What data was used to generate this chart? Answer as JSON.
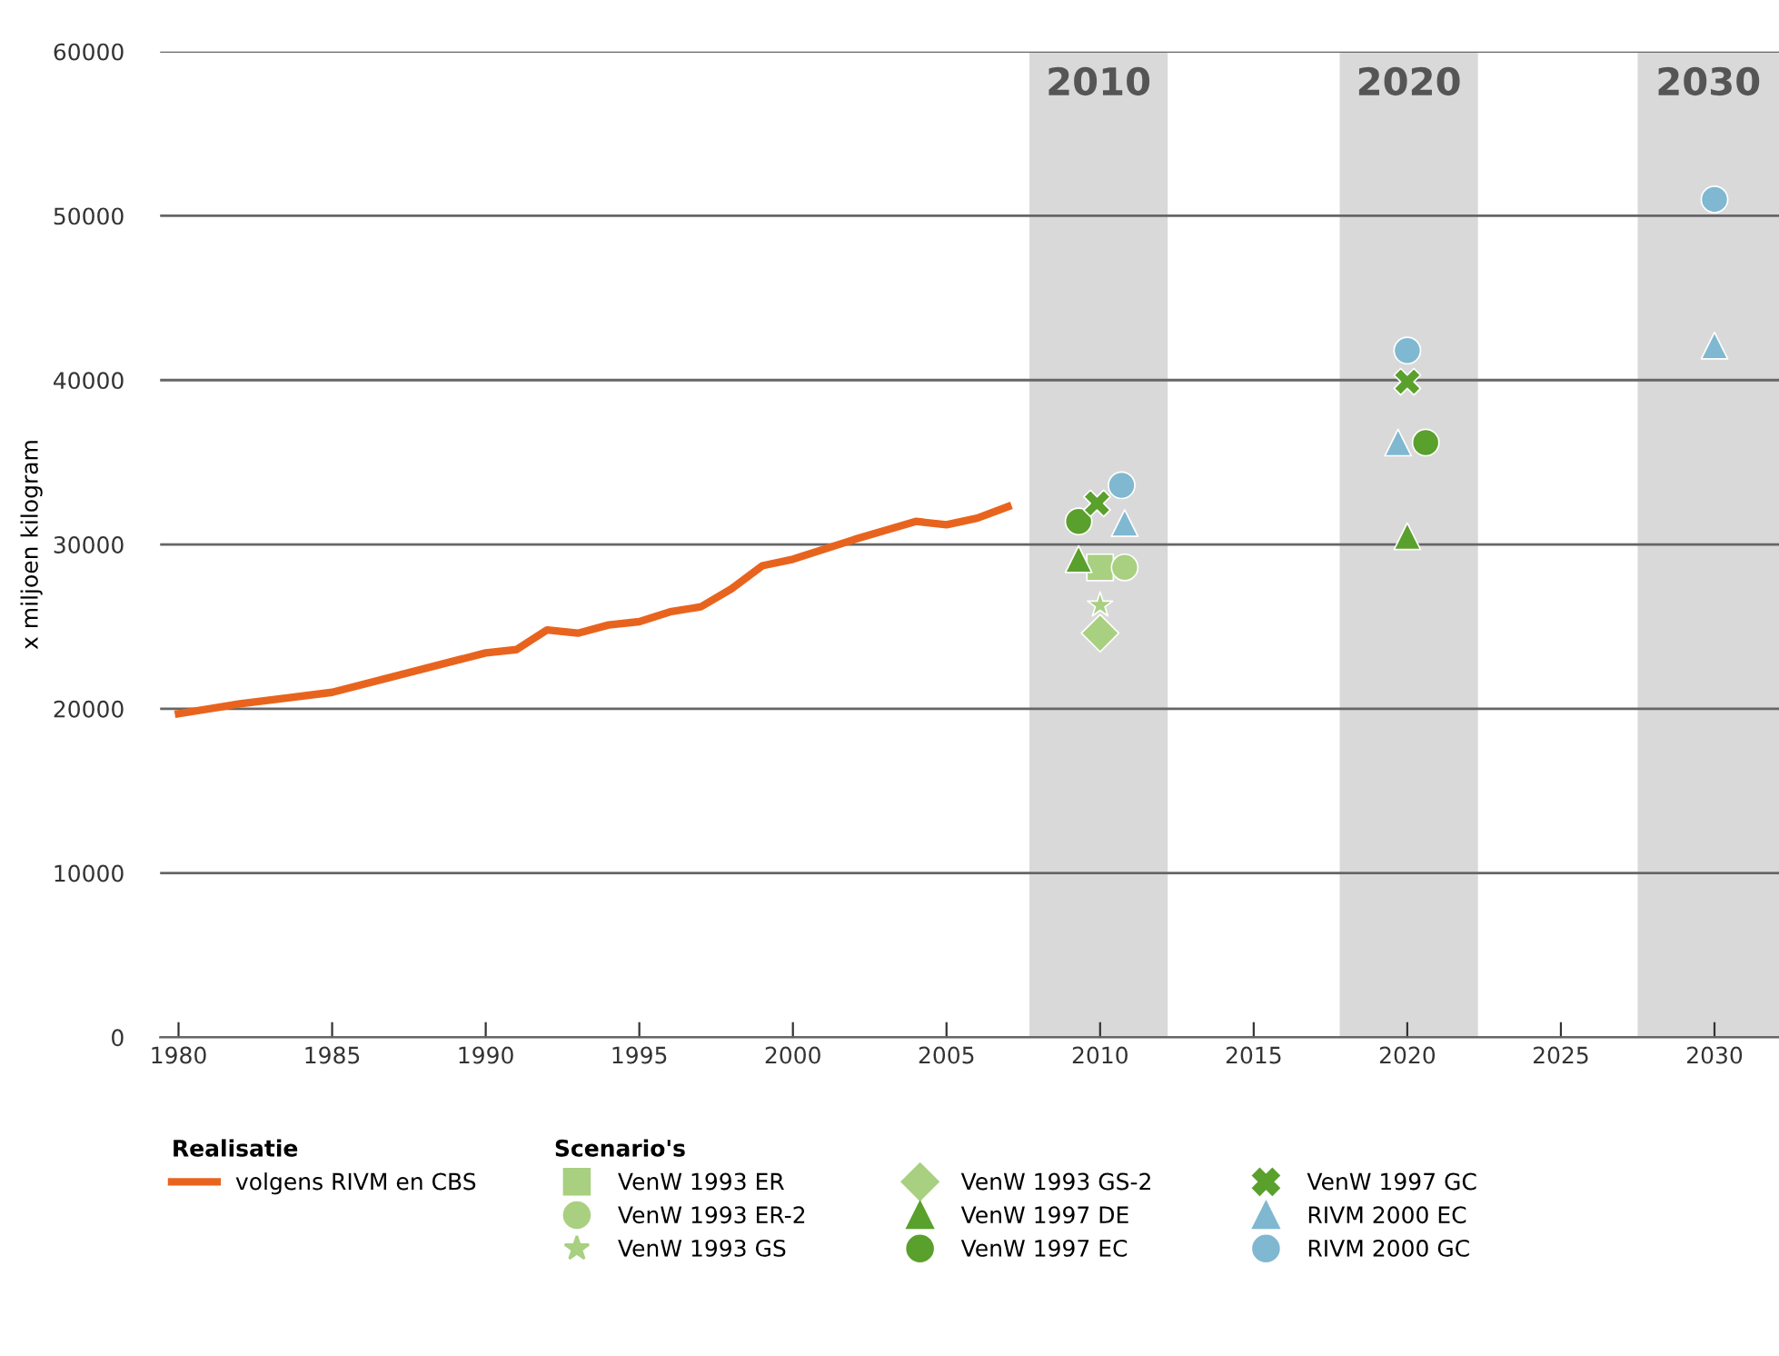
{
  "chart_data": {
    "type": "line",
    "ylabel": "x miljoen kilogram",
    "xlim": [
      1979.4,
      2032.1
    ],
    "ylim": [
      0,
      60000
    ],
    "xticks": [
      1980,
      1985,
      1990,
      1995,
      2000,
      2005,
      2010,
      2015,
      2020,
      2025,
      2030
    ],
    "yticks": [
      0,
      10000,
      20000,
      30000,
      40000,
      50000,
      60000
    ],
    "grid": "y",
    "legend": "bottom",
    "annotations": [
      "Realisatie",
      "Scenario's"
    ],
    "bands": [
      {
        "axis": "x",
        "from": 2007.7,
        "to": 2012.2,
        "label": "2010",
        "color": "#d9d9d9"
      },
      {
        "axis": "x",
        "from": 2017.8,
        "to": 2022.3,
        "label": "2020",
        "color": "#d9d9d9"
      },
      {
        "axis": "x",
        "from": 2027.5,
        "to": 2032.1,
        "label": "2030",
        "color": "#d9d9d9"
      }
    ],
    "series": [
      {
        "name": "volgens RIVM en CBS",
        "color": "#e8641e",
        "marker": "none",
        "x": [
          1980,
          1982,
          1985,
          1990,
          1991,
          1992,
          1993,
          1994,
          1995,
          1996,
          1997,
          1998,
          1999,
          2000,
          2002,
          2004,
          2005,
          2006,
          2007
        ],
        "values": [
          19700,
          20300,
          21000,
          23400,
          23600,
          24800,
          24600,
          25100,
          25300,
          25900,
          26200,
          27300,
          28700,
          29100,
          30300,
          31400,
          31200,
          31600,
          32300
        ]
      },
      {
        "name": "VenW 1993 ER",
        "type": "scatter",
        "color": "#a8d080",
        "marker": "square",
        "x": [
          2010.0
        ],
        "values": [
          28600
        ]
      },
      {
        "name": "VenW 1993 ER-2",
        "type": "scatter",
        "color": "#a8d080",
        "marker": "circle",
        "x": [
          2010.8
        ],
        "values": [
          28600
        ]
      },
      {
        "name": "VenW 1993 GS",
        "type": "scatter",
        "color": "#a8d080",
        "marker": "star",
        "x": [
          2010.0
        ],
        "values": [
          26300
        ]
      },
      {
        "name": "VenW 1993 GS-2",
        "type": "scatter",
        "color": "#a8d080",
        "marker": "diamond",
        "x": [
          2010.0
        ],
        "values": [
          24600
        ]
      },
      {
        "name": "VenW 1997 DE",
        "type": "scatter",
        "color": "#5aa02c",
        "marker": "triangle",
        "x": [
          2009.3,
          2020.0
        ],
        "values": [
          29100,
          30500
        ]
      },
      {
        "name": "VenW 1997 EC",
        "type": "scatter",
        "color": "#5aa02c",
        "marker": "circle",
        "x": [
          2009.3,
          2020.6
        ],
        "values": [
          31400,
          36200
        ]
      },
      {
        "name": "VenW 1997 GC",
        "type": "scatter",
        "color": "#5aa02c",
        "marker": "cross",
        "x": [
          2009.9,
          2020.0
        ],
        "values": [
          32500,
          39900
        ]
      },
      {
        "name": "RIVM 2000 EC",
        "type": "scatter",
        "color": "#7fb8d0",
        "marker": "triangle",
        "x": [
          2010.8,
          2019.7,
          2030.0
        ],
        "values": [
          31300,
          36200,
          42100
        ]
      },
      {
        "name": "RIVM 2000 GC",
        "type": "scatter",
        "color": "#7fb8d0",
        "marker": "circle",
        "x": [
          2010.7,
          2020.0,
          2030.0
        ],
        "values": [
          33600,
          41800,
          51000
        ]
      }
    ]
  }
}
